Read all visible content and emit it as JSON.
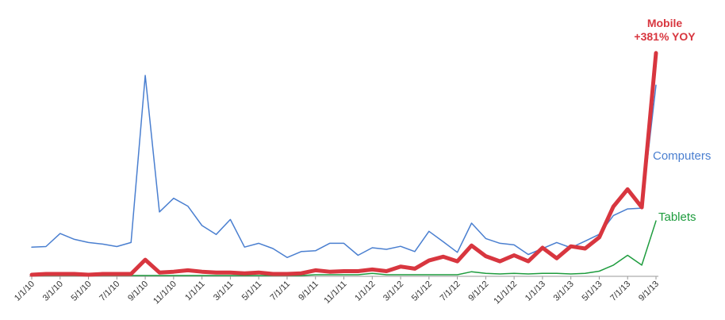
{
  "chart_data": {
    "type": "line",
    "title": "",
    "xlabel": "",
    "ylabel": "",
    "ylim": [
      0,
      100
    ],
    "grid": false,
    "legend": "labels at line ends",
    "x": [
      "1/1/10",
      "2/1/10",
      "3/1/10",
      "4/1/10",
      "5/1/10",
      "6/1/10",
      "7/1/10",
      "8/1/10",
      "9/1/10",
      "10/1/10",
      "11/1/10",
      "12/1/10",
      "1/1/11",
      "2/1/11",
      "3/1/11",
      "4/1/11",
      "5/1/11",
      "6/1/11",
      "7/1/11",
      "8/1/11",
      "9/1/11",
      "10/1/11",
      "11/1/11",
      "12/1/11",
      "1/1/12",
      "2/1/12",
      "3/1/12",
      "4/1/12",
      "5/1/12",
      "6/1/12",
      "7/1/12",
      "8/1/12",
      "9/1/12",
      "10/1/12",
      "11/1/12",
      "12/1/12",
      "1/1/13",
      "2/1/13",
      "3/1/13",
      "4/1/13",
      "5/1/13",
      "6/1/13",
      "7/1/13",
      "8/1/13",
      "9/1/13"
    ],
    "x_tick_labels": [
      "1/1/10",
      "3/1/10",
      "5/1/10",
      "7/1/10",
      "9/1/10",
      "11/1/10",
      "1/1/11",
      "3/1/11",
      "5/1/11",
      "7/1/11",
      "9/1/11",
      "11/1/11",
      "1/1/12",
      "3/1/12",
      "5/1/12",
      "7/1/12",
      "9/1/12",
      "11/1/12",
      "1/1/13",
      "3/1/13",
      "5/1/13",
      "7/1/13",
      "9/1/13"
    ],
    "series": [
      {
        "name": "Computers",
        "color": "#4a7fd0",
        "values": [
          14.2,
          14.5,
          21.0,
          18.1,
          16.5,
          15.7,
          14.5,
          16.5,
          100,
          31.8,
          38.6,
          34.7,
          25.0,
          20.5,
          28.0,
          14.2,
          16.1,
          13.5,
          9.0,
          12.0,
          12.4,
          16.1,
          16.1,
          10.1,
          13.9,
          13.1,
          14.6,
          12.0,
          22.1,
          16.9,
          11.6,
          26.2,
          18.5,
          16.1,
          15.3,
          10.5,
          13.5,
          16.5,
          13.9,
          17.2,
          20.6,
          30.0,
          33.3,
          33.7,
          95.1
        ]
      },
      {
        "name": "Tablets",
        "color": "#1e9c3e",
        "values": [
          0,
          0,
          0,
          0,
          0,
          0,
          0,
          0,
          0,
          0,
          0,
          0,
          0,
          0,
          0,
          0,
          0,
          0,
          0,
          0,
          0.4,
          0.4,
          0.4,
          0.4,
          1.1,
          0.4,
          0.4,
          0.4,
          0.4,
          0.4,
          0.4,
          1.9,
          1.1,
          0.8,
          1.1,
          0.8,
          1.1,
          1.1,
          0.8,
          1.1,
          2.2,
          5.2,
          10.1,
          5.2,
          27.3
        ]
      },
      {
        "name": "Mobile",
        "color": "#d8363f",
        "values": [
          0.4,
          0.8,
          0.8,
          0.8,
          0.4,
          0.8,
          0.8,
          0.8,
          7.9,
          1.5,
          1.9,
          2.6,
          1.9,
          1.5,
          1.5,
          1.1,
          1.5,
          0.8,
          0.8,
          1.1,
          2.6,
          1.9,
          2.2,
          2.2,
          3.0,
          2.2,
          4.5,
          3.4,
          7.5,
          9.4,
          7.1,
          15.0,
          9.7,
          7.1,
          10.1,
          7.1,
          13.9,
          8.6,
          14.6,
          13.5,
          19.1,
          34.5,
          43.1,
          34.1,
          111.2
        ]
      }
    ],
    "annotations": {
      "mobile_line1": "Mobile",
      "mobile_line2": "+381% YOY"
    }
  }
}
